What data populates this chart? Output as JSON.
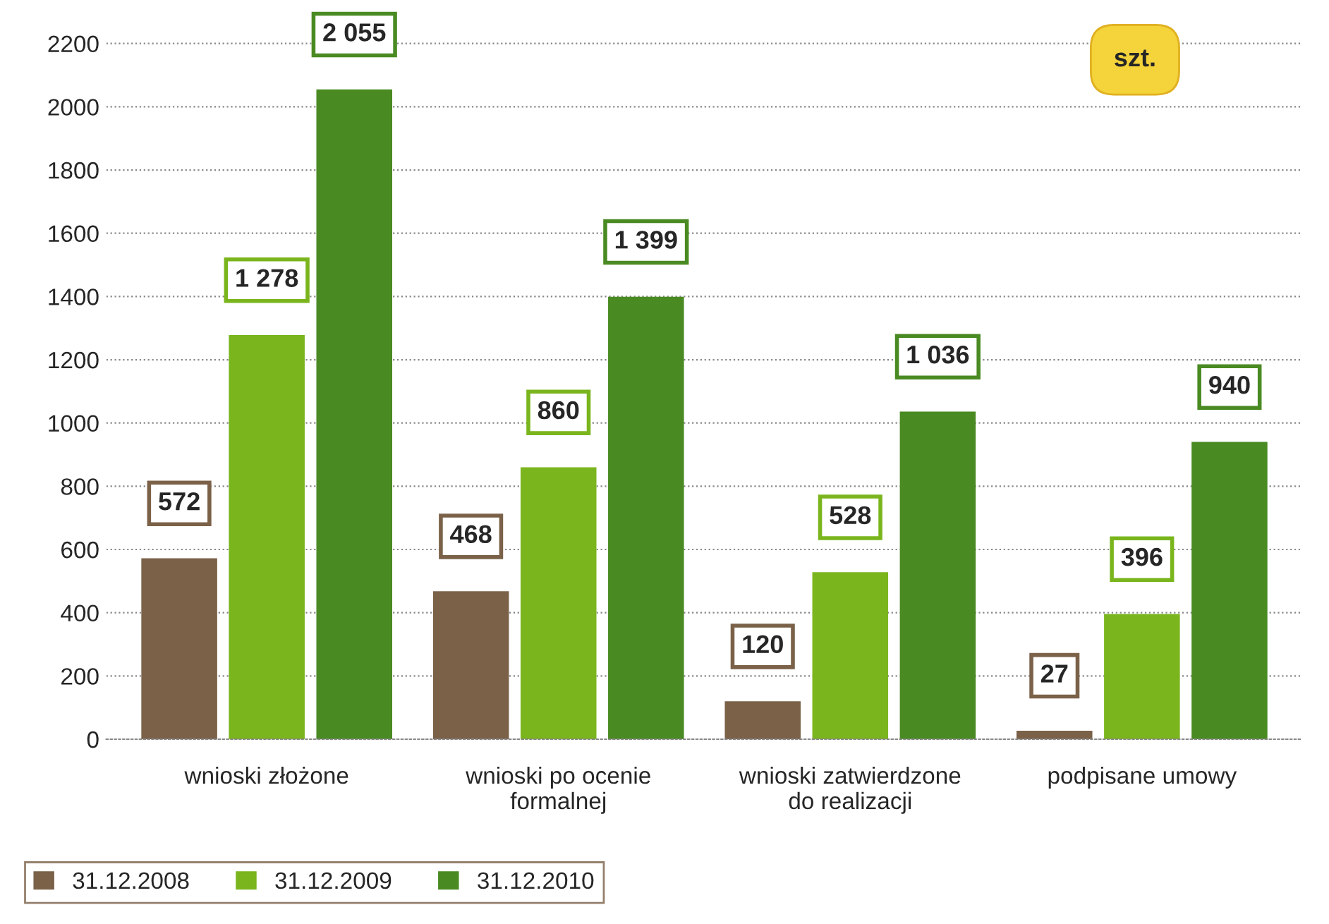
{
  "chart_data": {
    "type": "bar",
    "categories": [
      "wnioski złożone",
      "wnioski po ocenie\nformalnej",
      "wnioski zatwierdzone\ndo realizacji",
      "podpisane umowy"
    ],
    "series": [
      {
        "name": "31.12.2008",
        "color": "#7a6148",
        "values": [
          572,
          468,
          120,
          27
        ],
        "value_labels": [
          "572",
          "468",
          "120",
          "27"
        ]
      },
      {
        "name": "31.12.2009",
        "color": "#7ab51d",
        "values": [
          1278,
          860,
          528,
          396
        ],
        "value_labels": [
          "1 278",
          "860",
          "528",
          "396"
        ]
      },
      {
        "name": "31.12.2010",
        "color": "#4a8a22",
        "values": [
          2055,
          1399,
          1036,
          940
        ],
        "value_labels": [
          "2 055",
          "1 399",
          "1 036",
          "940"
        ]
      }
    ],
    "ylim": [
      0,
      2250
    ],
    "yticks": [
      0,
      200,
      400,
      600,
      800,
      1000,
      1200,
      1400,
      1600,
      1800,
      2000,
      2200
    ],
    "grid": "y",
    "legend": "bottom left",
    "annotations": [
      "szt."
    ]
  }
}
